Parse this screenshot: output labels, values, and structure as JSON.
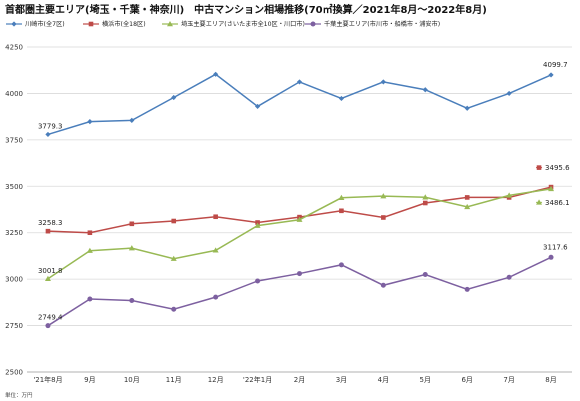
{
  "chart_data": {
    "type": "line",
    "title": "首都圏主要エリア(埼玉・千葉・神奈川)　中古マンション相場推移(70㎡換算／2021年8月～2022年8月)",
    "unit_note": "単位：万円",
    "categories": [
      "'21年8月",
      "9月",
      "10月",
      "11月",
      "12月",
      "'22年1月",
      "2月",
      "3月",
      "4月",
      "5月",
      "6月",
      "7月",
      "8月"
    ],
    "ylim": [
      2500,
      4250
    ],
    "yticks": [
      2500,
      2750,
      3000,
      3250,
      3500,
      3750,
      4000,
      4250
    ],
    "ytick_labels": [
      "2500",
      "2750",
      "3000",
      "3250",
      "3500",
      "3750",
      "4000",
      "4250"
    ],
    "grid": true,
    "legend_position": "top",
    "series": [
      {
        "name": "川崎市(全7区)",
        "color": "#4a7ebb",
        "marker": "diamond",
        "values": [
          3779.3,
          3848,
          3855,
          3978,
          4103,
          3930,
          4062,
          3973,
          4062,
          4020,
          3920,
          4000,
          4099.7
        ],
        "first_label": "3779.3",
        "last_label": "4099.7"
      },
      {
        "name": "横浜市(全18区)",
        "color": "#be4b48",
        "marker": "square",
        "values": [
          3258.3,
          3250,
          3298,
          3313,
          3336,
          3305,
          3334,
          3368,
          3332,
          3410,
          3440,
          3440,
          3495.6
        ],
        "first_label": "3258.3",
        "last_label": "3495.6"
      },
      {
        "name": "埼玉主要エリア(さいたま市全10区・川口市)",
        "color": "#98b954",
        "marker": "triangle",
        "values": [
          3001.8,
          3153,
          3167,
          3110,
          3155,
          3288,
          3320,
          3438,
          3447,
          3441,
          3389,
          3451,
          3486.1
        ],
        "first_label": "3001.8",
        "last_label": "3486.1"
      },
      {
        "name": "千葉主要エリア(市川市・船橋市・浦安市)",
        "color": "#7d60a0",
        "marker": "circle",
        "values": [
          2749.4,
          2893,
          2885,
          2838,
          2903,
          2990,
          3030,
          3077,
          2967,
          3025,
          2945,
          3010,
          3117.6
        ],
        "first_label": "2749.4",
        "last_label": "3117.6"
      }
    ]
  }
}
